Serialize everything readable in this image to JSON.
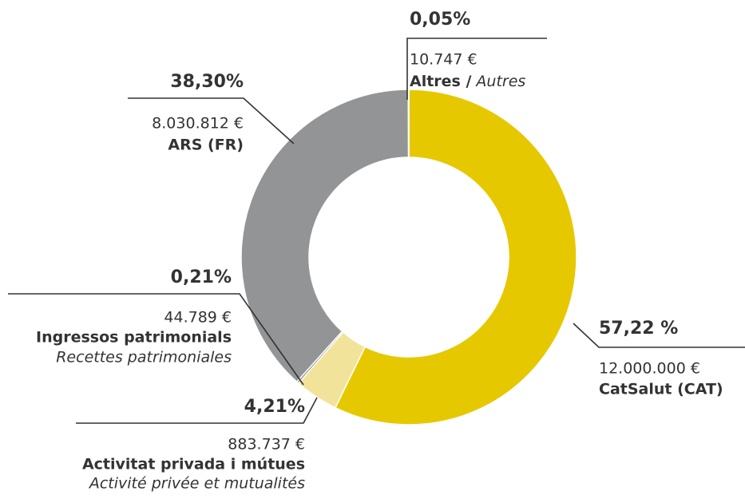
{
  "chart_data": {
    "type": "pie",
    "donut": true,
    "categories": [
      "CatSalut (CAT)",
      "Activitat privada i mútues",
      "Ingressos patrimonials",
      "ARS (FR)",
      "Altres /"
    ],
    "categories_fr": [
      null,
      "Activité privée et mutualités",
      "Recettes patrimoniales",
      null,
      "Autres"
    ],
    "values": [
      57.22,
      4.21,
      0.21,
      38.3,
      0.05
    ],
    "value_labels": [
      "57,22 %",
      "4,21%",
      "0,21%",
      "38,30%",
      "0,05%"
    ],
    "amounts": [
      "12.000.000 €",
      "883.737 €",
      "44.789 €",
      "8.030.812 €",
      "10.747 €"
    ],
    "colors": [
      "#e6c800",
      "#f2e39a",
      "#7d7e80",
      "#939495",
      "#ffffff"
    ]
  }
}
